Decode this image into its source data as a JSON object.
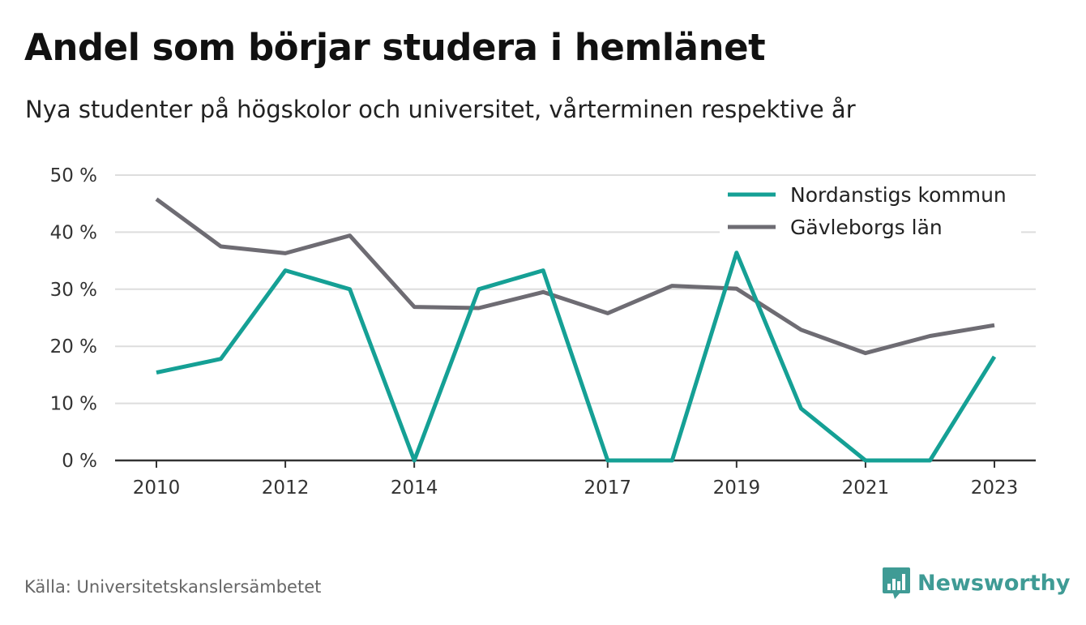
{
  "header": {
    "title": "Andel som börjar studera i hemlänet",
    "subtitle": "Nya studenter på högskolor och universitet, vårterminen respektive år"
  },
  "footer": {
    "source": "Källa: Universitetskanslersämbetet",
    "brand": "Newsworthy",
    "brand_icon": "bar-chart-speech-bubble-icon"
  },
  "colors": {
    "series_1": "#15a095",
    "series_2": "#6e6c73",
    "grid": "#dddddd",
    "axis": "#333333",
    "brand": "#3f9b95"
  },
  "chart_data": {
    "type": "line",
    "x": [
      2010,
      2011,
      2012,
      2013,
      2014,
      2015,
      2016,
      2017,
      2018,
      2019,
      2020,
      2021,
      2022,
      2023
    ],
    "x_tick_labels": [
      "2010",
      "2012",
      "2014",
      "2017",
      "2019",
      "2021",
      "2023"
    ],
    "y_tick_labels": [
      "0 %",
      "10 %",
      "20 %",
      "30 %",
      "40 %",
      "50 %"
    ],
    "ylim": [
      0,
      50
    ],
    "grid": true,
    "legend_position": "top-right",
    "series": [
      {
        "name": "Nordanstigs kommun",
        "values": [
          15.4,
          17.8,
          33.3,
          30.0,
          0,
          30.0,
          33.3,
          0,
          0,
          36.4,
          9.1,
          0,
          0,
          18.2
        ]
      },
      {
        "name": "Gävleborgs län",
        "values": [
          45.8,
          37.5,
          36.3,
          39.4,
          26.9,
          26.7,
          29.5,
          25.8,
          30.6,
          30.1,
          22.9,
          18.8,
          21.8,
          23.7
        ]
      }
    ]
  }
}
